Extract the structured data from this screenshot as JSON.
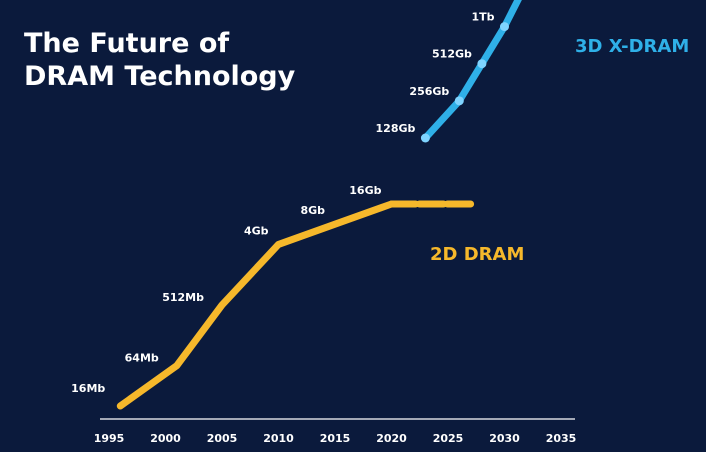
{
  "chart_data": {
    "type": "line",
    "title_lines": [
      "The Future of",
      "DRAM Technology"
    ],
    "x_ticks": [
      1995,
      2000,
      2005,
      2010,
      2015,
      2020,
      2025,
      2030,
      2035
    ],
    "xlim": [
      1995,
      2035
    ],
    "series": [
      {
        "name": "2D DRAM",
        "color": "#f6b82b",
        "points": [
          {
            "x": 1996,
            "y": "16Mb"
          },
          {
            "x": 2001,
            "y": "64Mb"
          },
          {
            "x": 2005,
            "y": "512Mb"
          },
          {
            "x": 2010,
            "y": "4Gb"
          },
          {
            "x": 2015,
            "y": "8Gb"
          },
          {
            "x": 2020,
            "y": "16Gb"
          },
          {
            "x": 2027,
            "y": "16Gb"
          }
        ],
        "labels": [
          {
            "text": "16Mb",
            "x": 1996
          },
          {
            "text": "64Mb",
            "x": 2001
          },
          {
            "text": "512Mb",
            "x": 2005
          },
          {
            "text": "4Gb",
            "x": 2010
          },
          {
            "text": "8Gb",
            "x": 2015
          },
          {
            "text": "16Gb",
            "x": 2020
          }
        ]
      },
      {
        "name": "3D X-DRAM",
        "color": "#2fb0e8",
        "points": [
          {
            "x": 2023,
            "y": "128Gb"
          },
          {
            "x": 2026,
            "y": "256Gb"
          },
          {
            "x": 2028,
            "y": "512Gb"
          },
          {
            "x": 2030,
            "y": "1Tb"
          },
          {
            "x": 2032,
            "y": "1Tb+"
          }
        ],
        "labels": [
          {
            "text": "128Gb",
            "x": 2023
          },
          {
            "text": "256Gb",
            "x": 2026
          },
          {
            "text": "512Gb",
            "x": 2028
          },
          {
            "text": "1Tb",
            "x": 2030
          }
        ]
      }
    ],
    "colors": {
      "background": "#0b1a3c",
      "axis": "#ffffff"
    }
  }
}
